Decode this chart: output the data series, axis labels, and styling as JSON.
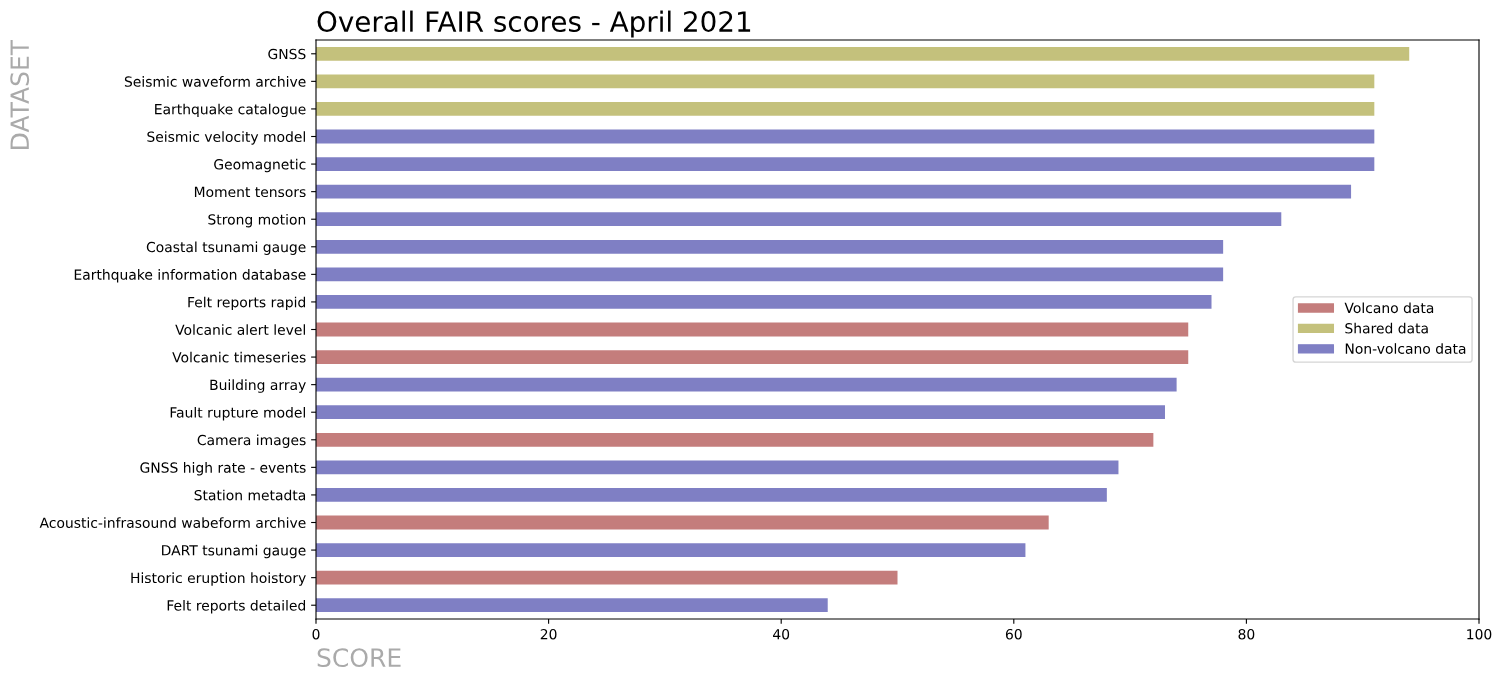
{
  "chart_data": {
    "type": "bar",
    "orientation": "horizontal",
    "title": "Overall FAIR scores - April 2021",
    "xlabel": "SCORE",
    "ylabel": "DATASET",
    "categories": [
      "GNSS",
      "Seismic waveform archive",
      "Earthquake catalogue",
      "Seismic velocity model",
      "Geomagnetic",
      "Moment tensors",
      "Strong motion",
      "Coastal tsunami gauge",
      "Earthquake information database",
      "Felt reports rapid",
      "Volcanic alert level",
      "Volcanic timeseries",
      "Building array",
      "Fault rupture model",
      "Camera images",
      "GNSS high rate - events",
      "Station metadta",
      "Acoustic-infrasound wabeform archive",
      "DART tsunami gauge",
      "Historic eruption hoistory",
      "Felt reports detailed"
    ],
    "series": [
      {
        "name": "Volcano data",
        "color": "#c47d7c",
        "values": [
          null,
          null,
          null,
          null,
          null,
          null,
          null,
          null,
          null,
          null,
          75,
          75,
          null,
          null,
          72,
          null,
          null,
          63,
          null,
          50,
          null
        ]
      },
      {
        "name": "Shared data",
        "color": "#c4c17c",
        "values": [
          94,
          91,
          91,
          null,
          null,
          null,
          null,
          null,
          null,
          null,
          null,
          null,
          null,
          null,
          null,
          null,
          null,
          null,
          null,
          null,
          null
        ]
      },
      {
        "name": "Non-volcano data",
        "color": "#7f7fc4",
        "values": [
          null,
          null,
          null,
          91,
          91,
          89,
          83,
          78,
          78,
          77,
          null,
          null,
          74,
          73,
          null,
          69,
          68,
          null,
          61,
          null,
          44
        ]
      }
    ],
    "xlim": [
      0,
      100
    ],
    "xticks": [
      0,
      20,
      40,
      60,
      80,
      100
    ],
    "grid": false,
    "legend": "right"
  }
}
